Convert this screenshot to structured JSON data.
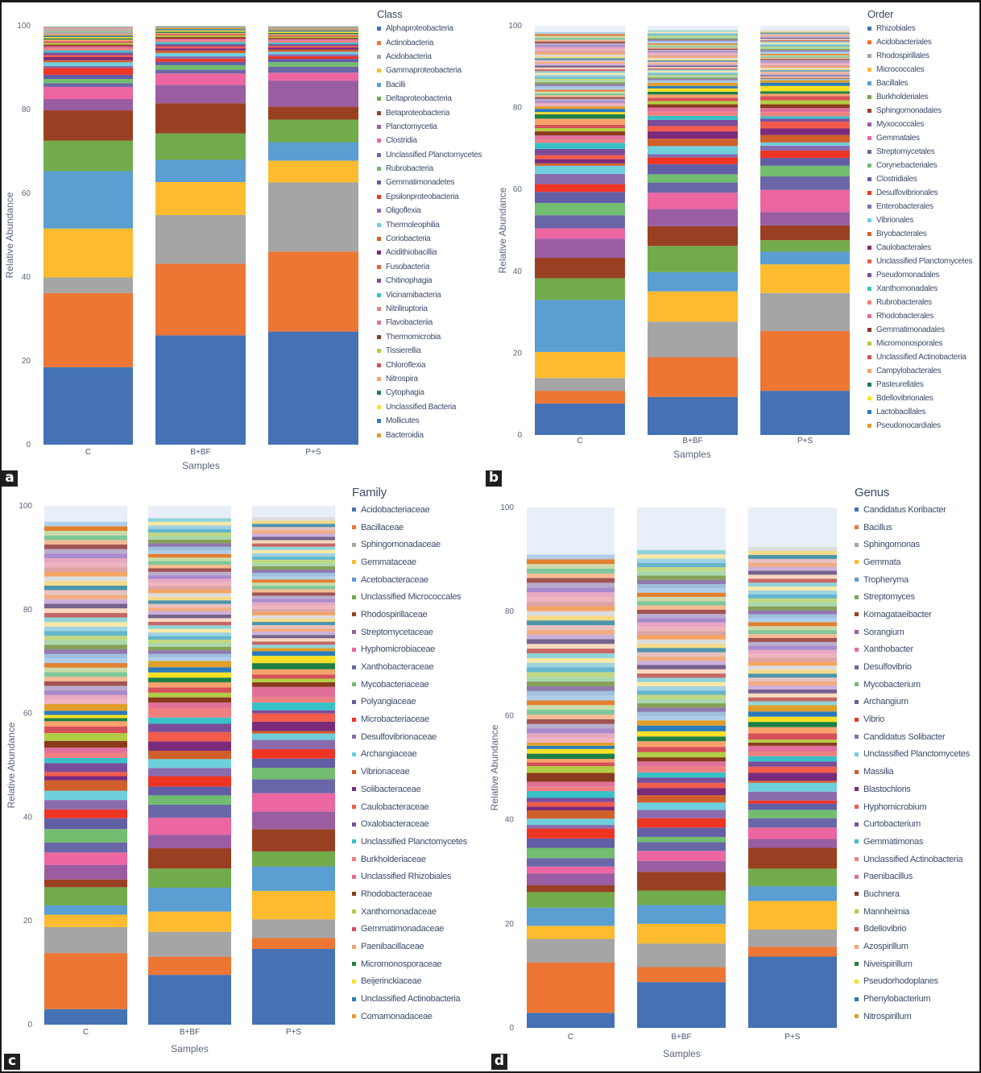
{
  "figure": {
    "panel_tags": [
      "a",
      "b",
      "c",
      "d"
    ]
  },
  "palette": [
    "#4472b4",
    "#ed7634",
    "#a5a5a5",
    "#fdbb2f",
    "#5a9ed2",
    "#72ab4c",
    "#9a4022",
    "#9b5da2",
    "#ec66a2",
    "#6a67a8",
    "#72bd6f",
    "#625ea6",
    "#ee3523",
    "#8a6cae",
    "#6ecfdd",
    "#d0602a",
    "#7b2a7c",
    "#f25c4b",
    "#7b4c9b",
    "#38c1c6",
    "#f08080",
    "#e0709a",
    "#8b3a1e",
    "#b2cd45",
    "#d65058",
    "#f7a26a",
    "#1f8046",
    "#fde023",
    "#2b7bba",
    "#e09f2a"
  ],
  "chart_data": [
    {
      "id": "a",
      "type": "bar",
      "stacked": true,
      "title": "",
      "categories": [
        "C",
        "B+BF",
        "P+S"
      ],
      "xlabel": "Samples",
      "ylabel": "Relative Abundance",
      "ylim": [
        0,
        100
      ],
      "yticks": [
        0,
        20,
        40,
        60,
        80,
        100
      ],
      "grid": false,
      "legend_title": "Class",
      "legend_position": "right",
      "series": [
        {
          "name": "Alphaproteobacteria",
          "values": [
            18.5,
            26.1,
            27.0
          ]
        },
        {
          "name": "Actinobacteria",
          "values": [
            17.7,
            17.1,
            19.1
          ]
        },
        {
          "name": "Acidobacteria",
          "values": [
            3.7,
            11.6,
            16.5
          ]
        },
        {
          "name": "Gammaproteobacteria",
          "values": [
            11.7,
            7.9,
            5.2
          ]
        },
        {
          "name": "Bacilli",
          "values": [
            13.7,
            5.3,
            4.4
          ]
        },
        {
          "name": "Deltaproteobacteria",
          "values": [
            7.3,
            6.3,
            5.4
          ]
        },
        {
          "name": "Betaproteobacteria",
          "values": [
            7.2,
            7.2,
            3.1
          ]
        },
        {
          "name": "Planctomycetia",
          "values": [
            2.7,
            4.4,
            6.2
          ]
        },
        {
          "name": "Clostridia",
          "values": [
            2.9,
            2.7,
            1.9
          ]
        },
        {
          "name": "Unclassified Planctomycetes",
          "values": [
            0.9,
            0.9,
            1.4
          ]
        },
        {
          "name": "Rubrobacteria",
          "values": [
            1.0,
            1.1,
            1.1
          ]
        },
        {
          "name": "Gemmatimonadetes",
          "values": [
            1.0,
            0.8,
            0.8
          ]
        },
        {
          "name": "Epsilonproteobacteria",
          "values": [
            1.6,
            0.7,
            0.6
          ]
        },
        {
          "name": "Oligoflexia",
          "values": [
            0.5,
            0.6,
            0.5
          ]
        },
        {
          "name": "Thermoleophilia",
          "values": [
            0.9,
            0.8,
            0.6
          ]
        },
        {
          "name": "Coriobacteria",
          "values": [
            0.5,
            0.6,
            0.5
          ]
        },
        {
          "name": "Acidithiobacillia",
          "values": [
            0.7,
            0.5,
            0.5
          ]
        },
        {
          "name": "Fusobacteria",
          "values": [
            0.5,
            0.5,
            0.4
          ]
        },
        {
          "name": "Chitinophagia",
          "values": [
            0.6,
            0.5,
            0.4
          ]
        },
        {
          "name": "Vicinamibacteria",
          "values": [
            0.5,
            0.5,
            0.4
          ]
        },
        {
          "name": "Nitriliruptoria",
          "values": [
            0.5,
            0.4,
            0.4
          ]
        },
        {
          "name": "Flavobacteriia",
          "values": [
            0.5,
            0.4,
            0.4
          ]
        },
        {
          "name": "Thermomicrobia",
          "values": [
            0.4,
            0.4,
            0.3
          ]
        },
        {
          "name": "Tissierellia",
          "values": [
            0.4,
            0.4,
            0.3
          ]
        },
        {
          "name": "Chloroflexia",
          "values": [
            0.4,
            0.3,
            0.3
          ]
        },
        {
          "name": "Nitrospira",
          "values": [
            0.4,
            0.3,
            0.3
          ]
        },
        {
          "name": "Cytophagia",
          "values": [
            0.3,
            0.3,
            0.3
          ]
        },
        {
          "name": "Unclassified Bacteria",
          "values": [
            0.3,
            0.3,
            0.3
          ]
        },
        {
          "name": "Mollicutes",
          "values": [
            0.3,
            0.3,
            0.3
          ]
        },
        {
          "name": "Bacteroidia",
          "values": [
            0.3,
            0.3,
            0.3
          ]
        }
      ]
    },
    {
      "id": "b",
      "type": "bar",
      "stacked": true,
      "title": "",
      "categories": [
        "C",
        "B+BF",
        "P+S"
      ],
      "xlabel": "Samples",
      "ylabel": "Relative Abundance",
      "ylim": [
        0,
        100
      ],
      "yticks": [
        0,
        20,
        40,
        60,
        80,
        100
      ],
      "grid": false,
      "legend_title": "Order",
      "legend_position": "right",
      "series": [
        {
          "name": "Rhizobiales",
          "values": [
            7.7,
            9.3,
            10.8
          ]
        },
        {
          "name": "Acidobacteriales",
          "values": [
            3.1,
            9.7,
            14.6
          ]
        },
        {
          "name": "Rhodospirillales",
          "values": [
            3.1,
            8.7,
            9.3
          ]
        },
        {
          "name": "Micrococcales",
          "values": [
            6.4,
            7.4,
            7.0
          ]
        },
        {
          "name": "Bacillales",
          "values": [
            12.7,
            4.7,
            3.1
          ]
        },
        {
          "name": "Burkholderiales",
          "values": [
            5.3,
            6.4,
            2.8
          ]
        },
        {
          "name": "Sphingomonadales",
          "values": [
            5.0,
            4.8,
            3.6
          ]
        },
        {
          "name": "Myxococcales",
          "values": [
            4.7,
            4.2,
            3.3
          ]
        },
        {
          "name": "Gemmatales",
          "values": [
            2.5,
            4.0,
            5.4
          ]
        },
        {
          "name": "Streptomycetales",
          "values": [
            3.2,
            2.5,
            3.3
          ]
        },
        {
          "name": "Corynebacteriales",
          "values": [
            3.0,
            2.0,
            2.6
          ]
        },
        {
          "name": "Clostridiales",
          "values": [
            2.7,
            2.5,
            1.9
          ]
        },
        {
          "name": "Desulfovibrionales",
          "values": [
            1.9,
            1.6,
            1.8
          ]
        },
        {
          "name": "Enterobacterales",
          "values": [
            2.5,
            0.8,
            1.2
          ]
        },
        {
          "name": "Vibrionales",
          "values": [
            2.0,
            2.0,
            0.8
          ]
        },
        {
          "name": "Bryobacterales",
          "values": [
            0.6,
            1.8,
            1.8
          ]
        },
        {
          "name": "Caulobacterales",
          "values": [
            1.0,
            1.8,
            1.6
          ]
        },
        {
          "name": "Unclassified Planctomycetes",
          "values": [
            1.0,
            1.3,
            1.7
          ]
        },
        {
          "name": "Pseudomonadales",
          "values": [
            1.5,
            1.5,
            0.7
          ]
        },
        {
          "name": "Xanthomonadales",
          "values": [
            1.5,
            1.0,
            0.6
          ]
        },
        {
          "name": "Rubrobacterales",
          "values": [
            0.8,
            1.0,
            1.0
          ]
        },
        {
          "name": "Rhodobacterales",
          "values": [
            1.0,
            1.0,
            1.0
          ]
        },
        {
          "name": "Gemmatimonadales",
          "values": [
            1.0,
            0.8,
            0.9
          ]
        },
        {
          "name": "Micromonosporales",
          "values": [
            0.8,
            0.8,
            1.0
          ]
        },
        {
          "name": "Unclassified Actinobacteria",
          "values": [
            0.8,
            0.8,
            1.0
          ]
        },
        {
          "name": "Campylobacterales",
          "values": [
            1.5,
            0.8,
            0.6
          ]
        },
        {
          "name": "Pasteurellales",
          "values": [
            1.1,
            0.7,
            0.6
          ]
        },
        {
          "name": "Bdellovibrionales",
          "values": [
            0.5,
            0.8,
            1.3
          ]
        },
        {
          "name": "Lactobacillales",
          "values": [
            0.8,
            0.6,
            0.8
          ]
        },
        {
          "name": "Pseudonocardiales",
          "values": [
            0.6,
            0.8,
            0.6
          ]
        }
      ]
    },
    {
      "id": "c",
      "type": "bar",
      "stacked": true,
      "title": "",
      "categories": [
        "C",
        "B+BF",
        "P+S"
      ],
      "xlabel": "Samples",
      "ylabel": "Relative Abundance",
      "ylim": [
        0,
        100
      ],
      "yticks": [
        0,
        20,
        40,
        60,
        80,
        100
      ],
      "grid": false,
      "legend_title": "Family",
      "legend_position": "right",
      "series": [
        {
          "name": "Acidobacteriaceae",
          "values": [
            3.0,
            9.6,
            14.6
          ]
        },
        {
          "name": "Bacillaceae",
          "values": [
            10.8,
            3.5,
            2.1
          ]
        },
        {
          "name": "Sphingomonadaceae",
          "values": [
            5.0,
            4.8,
            3.6
          ]
        },
        {
          "name": "Gemmataceae",
          "values": [
            2.4,
            3.9,
            5.5
          ]
        },
        {
          "name": "Acetobacteraceae",
          "values": [
            1.8,
            4.6,
            4.7
          ]
        },
        {
          "name": "Unclassified Micrococcales",
          "values": [
            3.5,
            3.7,
            2.9
          ]
        },
        {
          "name": "Rhodospirillaceae",
          "values": [
            1.5,
            3.9,
            4.3
          ]
        },
        {
          "name": "Streptomycetaceae",
          "values": [
            2.8,
            2.6,
            3.4
          ]
        },
        {
          "name": "Hyphomicrobiaceae",
          "values": [
            2.4,
            3.3,
            3.5
          ]
        },
        {
          "name": "Xanthobacteraceae",
          "values": [
            1.9,
            2.5,
            2.7
          ]
        },
        {
          "name": "Mycobacteriaceae",
          "values": [
            2.6,
            1.8,
            2.2
          ]
        },
        {
          "name": "Polyangiaceae",
          "values": [
            2.1,
            1.7,
            1.8
          ]
        },
        {
          "name": "Microbacteriaceae",
          "values": [
            1.7,
            2.0,
            1.8
          ]
        },
        {
          "name": "Desulfovibrionaceae",
          "values": [
            1.8,
            1.6,
            1.8
          ]
        },
        {
          "name": "Archangiaceae",
          "values": [
            1.8,
            1.7,
            1.2
          ]
        },
        {
          "name": "Vibrionaceae",
          "values": [
            2.0,
            1.6,
            0.5
          ]
        },
        {
          "name": "Solibacteraceae",
          "values": [
            0.8,
            1.8,
            1.8
          ]
        },
        {
          "name": "Caulobacteraceae",
          "values": [
            0.8,
            1.8,
            1.6
          ]
        },
        {
          "name": "Oxalobacteraceae",
          "values": [
            1.7,
            1.6,
            0.6
          ]
        },
        {
          "name": "Unclassified Planctomycetes",
          "values": [
            1.0,
            1.2,
            1.5
          ]
        },
        {
          "name": "Burkholderiaceae",
          "values": [
            1.0,
            1.9,
            1.0
          ]
        },
        {
          "name": "Unclassified Rhizobiales",
          "values": [
            1.0,
            1.0,
            2.0
          ]
        },
        {
          "name": "Rhodobacteraceae",
          "values": [
            1.3,
            1.0,
            0.9
          ]
        },
        {
          "name": "Xanthomonadaceae",
          "values": [
            1.5,
            0.9,
            0.7
          ]
        },
        {
          "name": "Gemmatimonadaceae",
          "values": [
            1.3,
            1.0,
            0.8
          ]
        },
        {
          "name": "Paenibacillaceae",
          "values": [
            1.0,
            1.0,
            1.0
          ]
        },
        {
          "name": "Micromonosporaceae",
          "values": [
            0.6,
            0.9,
            1.2
          ]
        },
        {
          "name": "Beijerinckiaceae",
          "values": [
            0.6,
            1.0,
            1.4
          ]
        },
        {
          "name": "Unclassified Actinobacteria",
          "values": [
            0.8,
            1.0,
            0.9
          ]
        },
        {
          "name": "Comamonadaceae",
          "values": [
            1.3,
            1.2,
            0.6
          ]
        }
      ]
    },
    {
      "id": "d",
      "type": "bar",
      "stacked": true,
      "title": "",
      "categories": [
        "C",
        "B+BF",
        "P+S"
      ],
      "xlabel": "Samples",
      "ylabel": "Relative Abundance",
      "ylim": [
        0,
        100
      ],
      "yticks": [
        0,
        20,
        40,
        60,
        80,
        100
      ],
      "grid": false,
      "legend_title": "Genus",
      "legend_position": "right",
      "series": [
        {
          "name": "Candidatus Koribacter",
          "values": [
            2.9,
            8.8,
            13.7
          ]
        },
        {
          "name": "Bacillus",
          "values": [
            9.7,
            2.9,
            1.9
          ]
        },
        {
          "name": "Sphingomonas",
          "values": [
            4.5,
            4.5,
            3.3
          ]
        },
        {
          "name": "Gemmata",
          "values": [
            2.5,
            3.8,
            5.5
          ]
        },
        {
          "name": "Tropheryma",
          "values": [
            3.5,
            3.6,
            2.8
          ]
        },
        {
          "name": "Streptomyces",
          "values": [
            3.0,
            2.8,
            3.4
          ]
        },
        {
          "name": "Komagataeibacter",
          "values": [
            1.3,
            3.6,
            4.0
          ]
        },
        {
          "name": "Sorangium",
          "values": [
            2.3,
            2.1,
            1.7
          ]
        },
        {
          "name": "Xanthobacter",
          "values": [
            1.3,
            1.9,
            2.2
          ]
        },
        {
          "name": "Desulfovibrio",
          "values": [
            1.6,
            1.7,
            1.8
          ]
        },
        {
          "name": "Mycobacterium",
          "values": [
            2.0,
            1.0,
            1.6
          ]
        },
        {
          "name": "Archangium",
          "values": [
            1.8,
            1.8,
            1.2
          ]
        },
        {
          "name": "Vibrio",
          "values": [
            1.9,
            1.8,
            0.6
          ]
        },
        {
          "name": "Candidatus Solibacter",
          "values": [
            0.7,
            1.6,
            1.7
          ]
        },
        {
          "name": "Unclassified Planctomycetes",
          "values": [
            1.2,
            1.4,
            1.7
          ]
        },
        {
          "name": "Massilia",
          "values": [
            1.6,
            1.4,
            0.4
          ]
        },
        {
          "name": "Blastochloris",
          "values": [
            0.7,
            1.4,
            1.5
          ]
        },
        {
          "name": "Hyphomicrobium",
          "values": [
            0.9,
            1.0,
            1.2
          ]
        },
        {
          "name": "Curtobacterium",
          "values": [
            0.8,
            1.0,
            1.0
          ]
        },
        {
          "name": "Gemmatimonas",
          "values": [
            1.3,
            1.0,
            1.0
          ]
        },
        {
          "name": "Unclassified Actinobacteria",
          "values": [
            0.9,
            1.1,
            0.9
          ]
        },
        {
          "name": "Paenibacillus",
          "values": [
            0.9,
            1.0,
            1.1
          ]
        },
        {
          "name": "Buchnera",
          "values": [
            1.7,
            0.8,
            0.6
          ]
        },
        {
          "name": "Mannheimia",
          "values": [
            1.3,
            1.0,
            0.6
          ]
        },
        {
          "name": "Bdellovibrio",
          "values": [
            0.7,
            1.0,
            1.2
          ]
        },
        {
          "name": "Azospirillum",
          "values": [
            0.7,
            1.1,
            1.2
          ]
        },
        {
          "name": "Niveispirillum",
          "values": [
            1.0,
            0.9,
            1.0
          ]
        },
        {
          "name": "Pseudorhodoplanes",
          "values": [
            0.9,
            1.0,
            1.0
          ]
        },
        {
          "name": "Phenylobacterium",
          "values": [
            0.6,
            1.1,
            1.0
          ]
        },
        {
          "name": "Nitrospirillum",
          "values": [
            0.6,
            1.0,
            1.2
          ]
        }
      ]
    }
  ]
}
